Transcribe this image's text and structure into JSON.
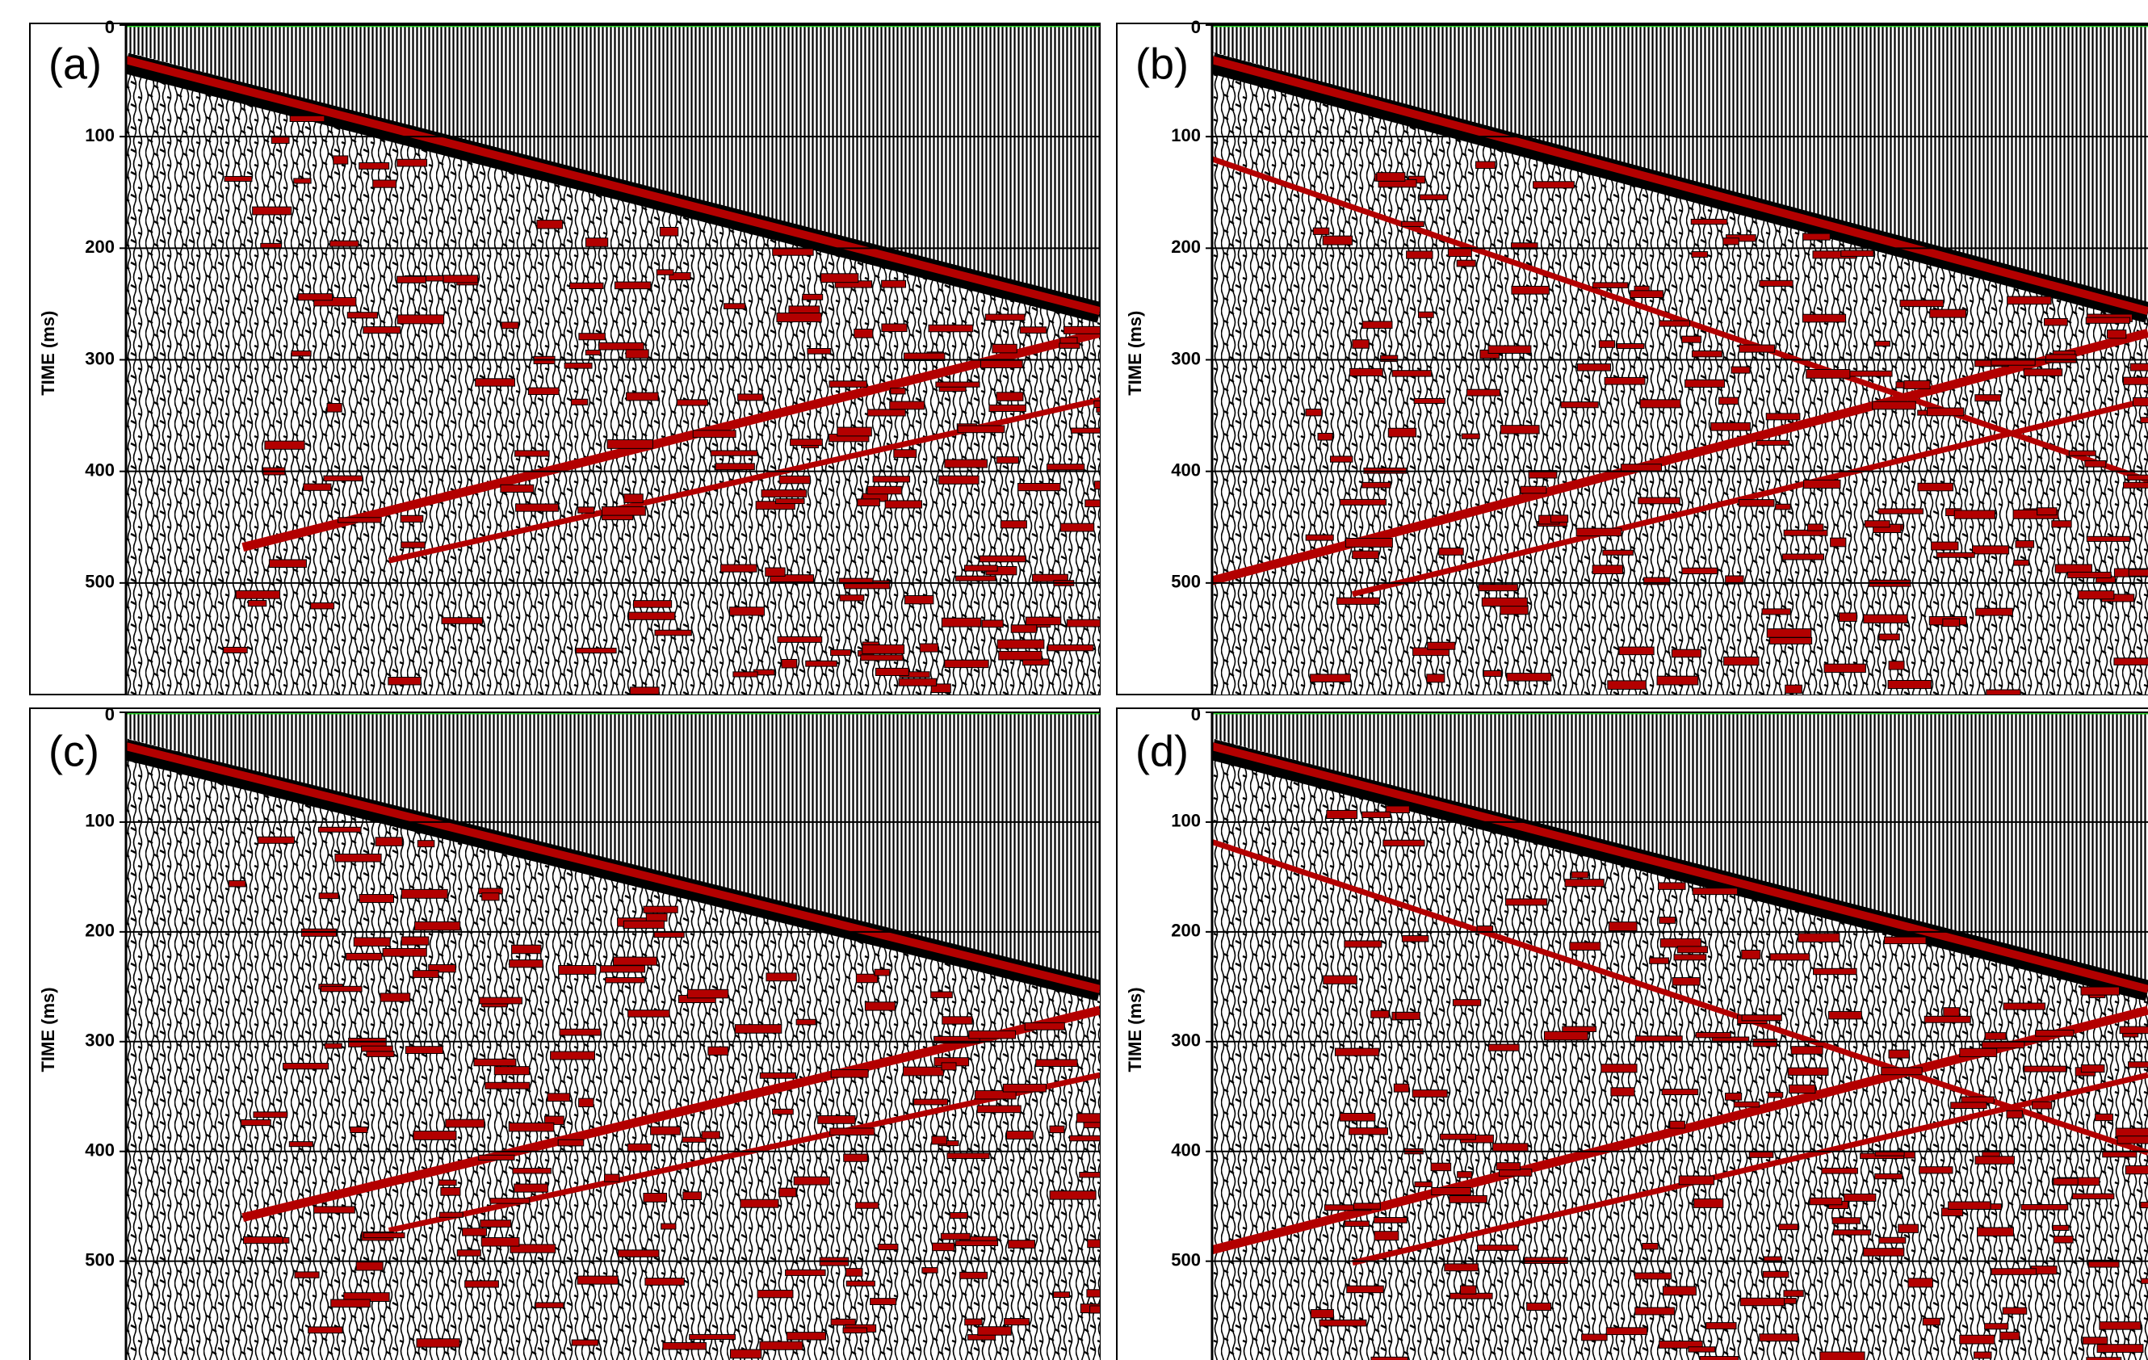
{
  "chart_data": [
    {
      "type": "seismic",
      "label": "(a)",
      "ylabel": "TIME (ms)",
      "ylim": [
        0,
        600
      ],
      "yticks": [
        0,
        100,
        200,
        300,
        400,
        500
      ],
      "grid": true
    },
    {
      "type": "seismic",
      "label": "(b)",
      "ylabel": "TIME (ms)",
      "ylim": [
        0,
        600
      ],
      "yticks": [
        0,
        100,
        200,
        300,
        400,
        500
      ],
      "grid": true
    },
    {
      "type": "seismic",
      "label": "(c)",
      "ylabel": "TIME (ms)",
      "ylim": [
        0,
        590
      ],
      "yticks": [
        0,
        100,
        200,
        300,
        400,
        500
      ],
      "grid": true
    },
    {
      "type": "seismic",
      "label": "(d)",
      "ylabel": "TIME (ms)",
      "ylim": [
        0,
        590
      ],
      "yticks": [
        0,
        100,
        200,
        300,
        400,
        500
      ],
      "grid": true
    }
  ]
}
